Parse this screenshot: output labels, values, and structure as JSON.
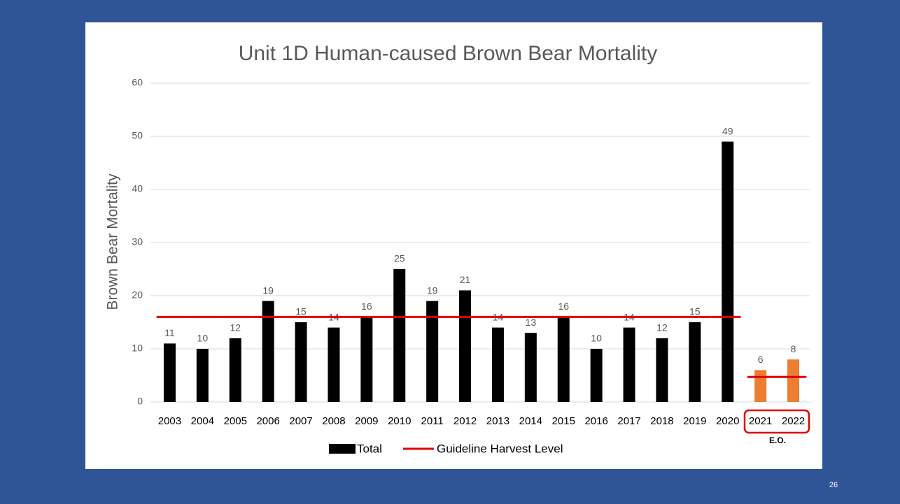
{
  "chart_data": {
    "type": "bar",
    "title": "Unit 1D Human-caused Brown Bear Mortality",
    "y_label": "Brown Bear Mortality",
    "categories": [
      "2003",
      "2004",
      "2005",
      "2006",
      "2007",
      "2008",
      "2009",
      "2010",
      "2011",
      "2012",
      "2013",
      "2014",
      "2015",
      "2016",
      "2017",
      "2018",
      "2019",
      "2020",
      "2021",
      "2022"
    ],
    "series": [
      {
        "name": "Total",
        "color": "#000000",
        "colors": [
          "#000000",
          "#000000",
          "#000000",
          "#000000",
          "#000000",
          "#000000",
          "#000000",
          "#000000",
          "#000000",
          "#000000",
          "#000000",
          "#000000",
          "#000000",
          "#000000",
          "#000000",
          "#000000",
          "#000000",
          "#000000",
          "#ed7d31",
          "#ed7d31"
        ],
        "values": [
          11,
          10,
          12,
          19,
          15,
          14,
          16,
          25,
          19,
          21,
          14,
          13,
          16,
          10,
          14,
          12,
          15,
          49,
          6,
          8
        ]
      },
      {
        "name": "Guideline Harvest Level",
        "color": "#e00000",
        "type": "line",
        "values": [
          16,
          16,
          16,
          16,
          16,
          16,
          16,
          16,
          16,
          16,
          16,
          16,
          16,
          16,
          16,
          16,
          16,
          16,
          4.7,
          4.7
        ]
      }
    ],
    "ylim": [
      0,
      60
    ],
    "yticks": [
      0,
      10,
      20,
      30,
      40,
      50,
      60
    ],
    "grid": true,
    "annotation": "E.O.",
    "page_number": "26"
  }
}
